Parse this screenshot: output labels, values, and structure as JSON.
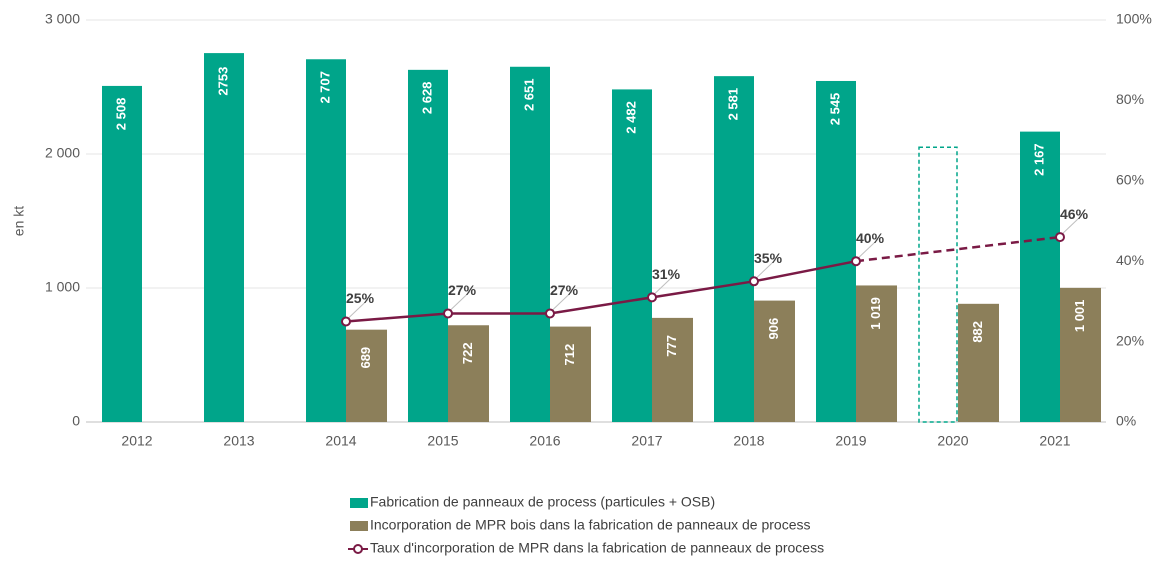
{
  "chart_data": {
    "type": "bar",
    "y_label": "en kt",
    "categories": [
      "2012",
      "2013",
      "2014",
      "2015",
      "2016",
      "2017",
      "2018",
      "2019",
      "2020",
      "2021"
    ],
    "series": [
      {
        "name": "Fabrication de panneaux de process (particules + OSB)",
        "color": "#00a58a",
        "values": [
          2508,
          2753,
          2707,
          2628,
          2651,
          2482,
          2581,
          2545,
          2050,
          2167
        ],
        "value_labels": [
          "2 508",
          "2753",
          "2 707",
          "2 628",
          "2 651",
          "2 482",
          "2 581",
          "2 545",
          null,
          "2 167"
        ],
        "estimated": [
          false,
          false,
          false,
          false,
          false,
          false,
          false,
          false,
          true,
          false
        ]
      },
      {
        "name": "Incorporation de MPR bois dans la fabrication de panneaux de process",
        "color": "#8c7f5a",
        "values": [
          null,
          null,
          689,
          722,
          712,
          777,
          906,
          1019,
          882,
          1001
        ],
        "value_labels": [
          null,
          null,
          "689",
          "722",
          "712",
          "777",
          "906",
          "1 019",
          "882",
          "1 001"
        ]
      },
      {
        "name": "Taux d'incorporation de MPR dans la fabrication de panneaux de process",
        "color": "#7a1a45",
        "type": "line",
        "axis": "y2",
        "gap_line": "dashed",
        "values": [
          null,
          null,
          25,
          27,
          27,
          31,
          35,
          40,
          null,
          46
        ],
        "value_labels": [
          null,
          null,
          "25%",
          "27%",
          "27%",
          "31%",
          "35%",
          "40%",
          null,
          "46%"
        ]
      }
    ],
    "ylim": [
      0,
      3000
    ],
    "yticks": [
      0,
      {
        "value": 1000,
        "label": "1 000"
      },
      {
        "value": 2000,
        "label": "2 000"
      },
      {
        "value": 3000,
        "label": "3 000"
      }
    ],
    "y2lim": [
      0,
      100
    ],
    "y2ticks": [
      {
        "value": 0,
        "label": "0%"
      },
      {
        "value": 20,
        "label": "20%"
      },
      {
        "value": 40,
        "label": "40%"
      },
      {
        "value": 60,
        "label": "60%"
      },
      {
        "value": 80,
        "label": "80%"
      },
      {
        "value": 100,
        "label": "100%"
      }
    ],
    "grid": true,
    "legend": "bottom"
  }
}
